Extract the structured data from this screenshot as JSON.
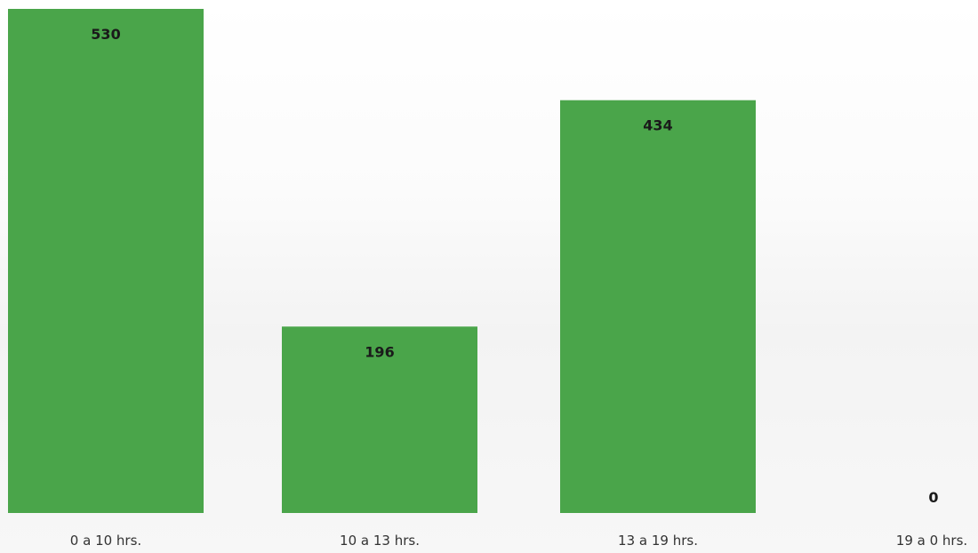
{
  "chart_data": {
    "type": "bar",
    "categories": [
      "0 a 10 hrs.",
      "10 a 13 hrs.",
      "13 a 19 hrs.",
      "19 a 0 hrs."
    ],
    "values": [
      530,
      196,
      434,
      0
    ],
    "data_labels": [
      "530",
      "196",
      "434",
      "0"
    ],
    "title": "",
    "xlabel": "",
    "ylabel": "",
    "ylim": [
      0,
      530
    ],
    "grid": false,
    "legend": "none",
    "bar_color": "#4aa54a"
  }
}
